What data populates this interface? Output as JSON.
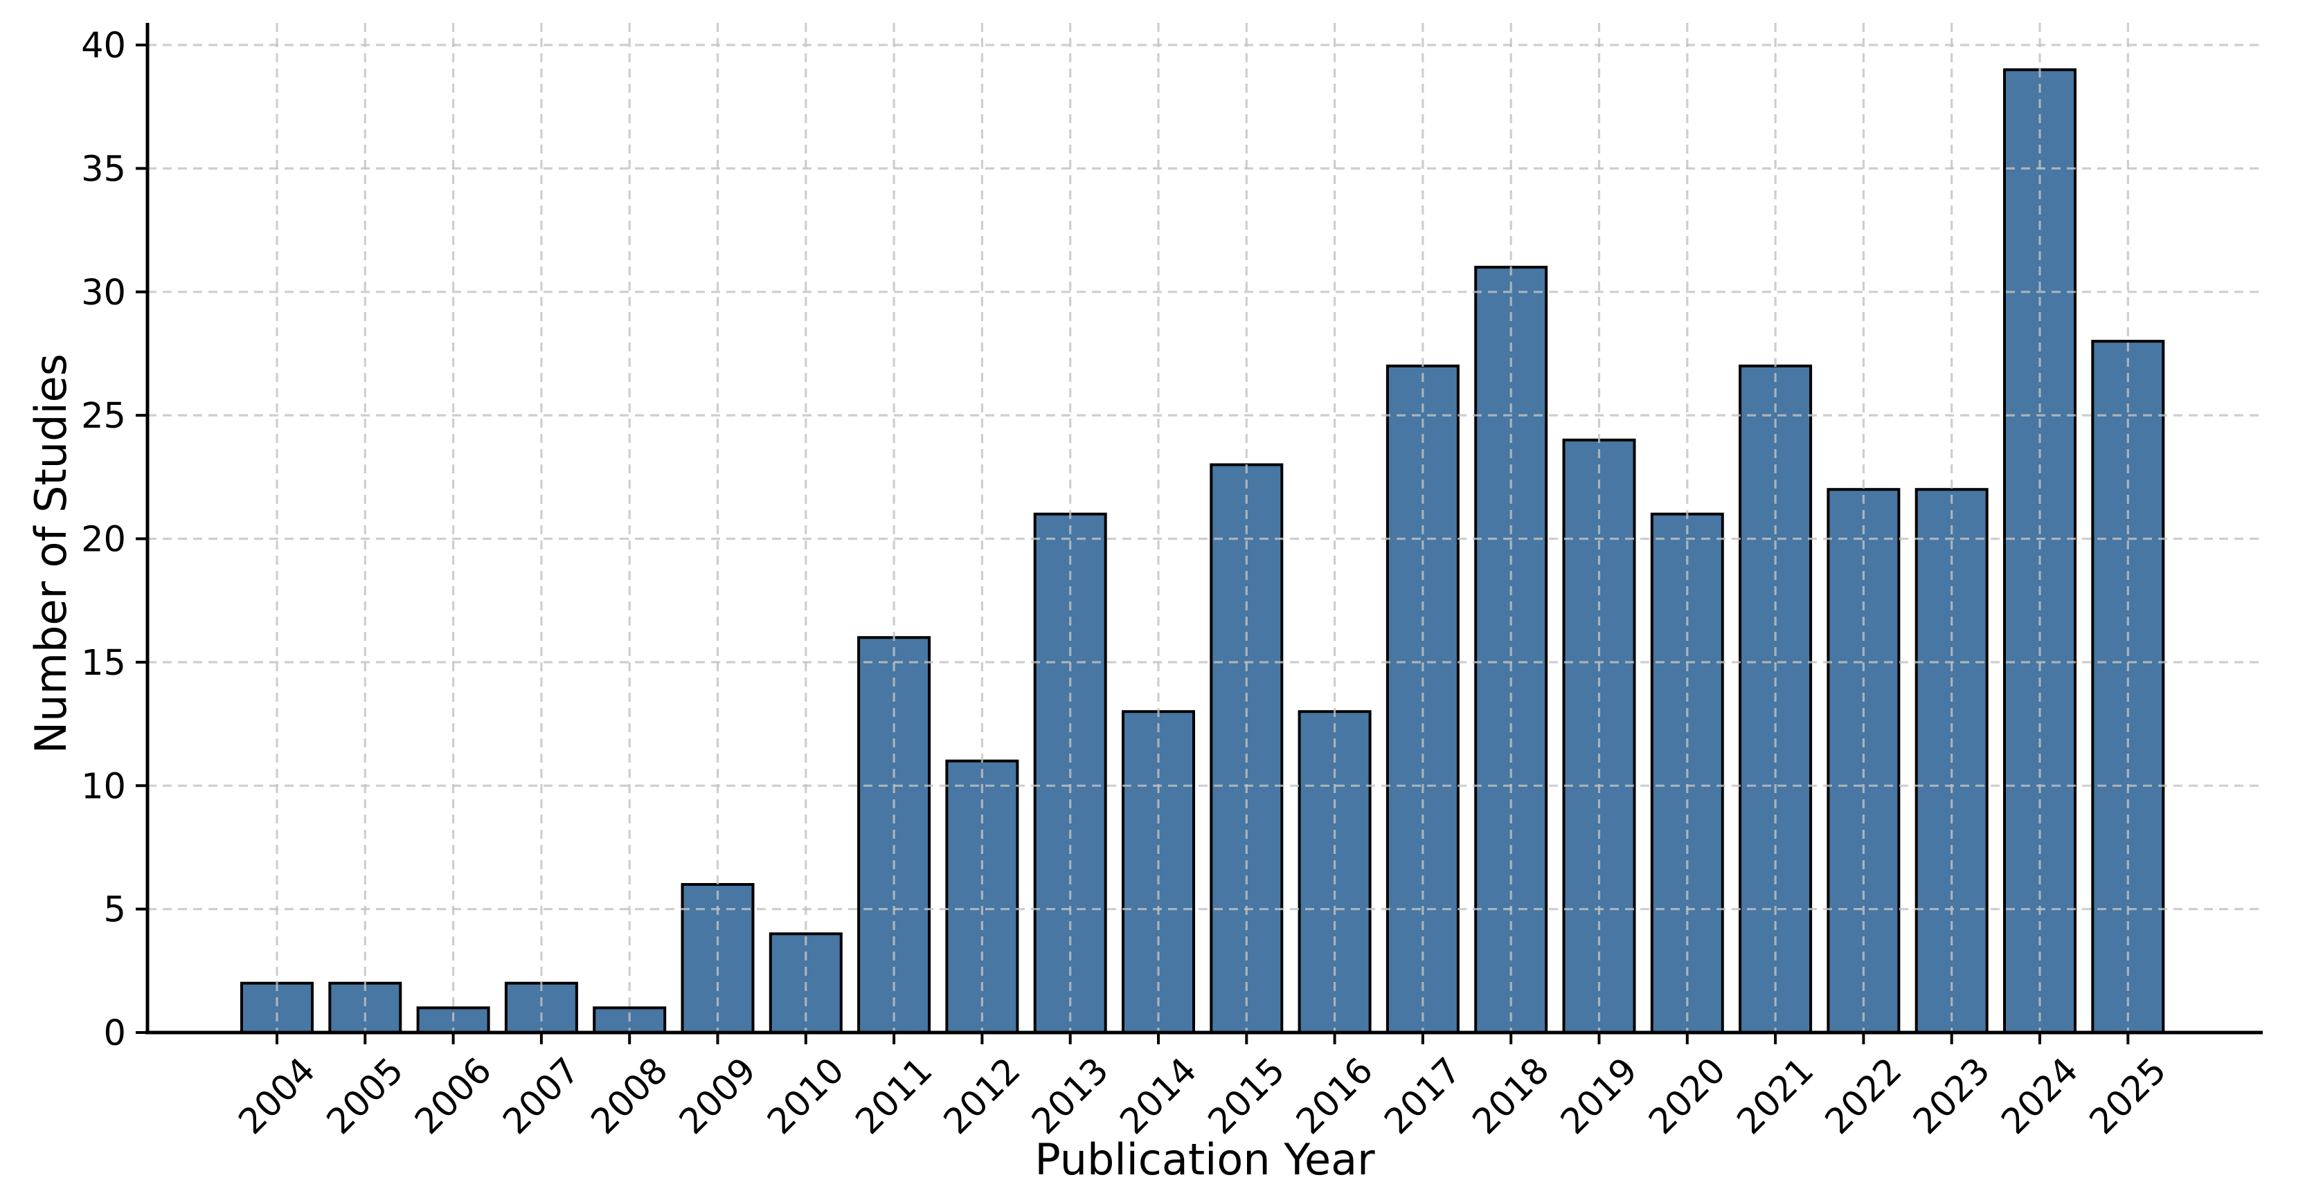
{
  "figure": {
    "background": "#ffffff"
  },
  "chart_data": {
    "type": "bar",
    "title": "",
    "xlabel": "Publication Year",
    "ylabel": "Number of Studies",
    "categories": [
      "2004",
      "2005",
      "2006",
      "2007",
      "2008",
      "2009",
      "2010",
      "2011",
      "2012",
      "2013",
      "2014",
      "2015",
      "2016",
      "2017",
      "2018",
      "2019",
      "2020",
      "2021",
      "2022",
      "2023",
      "2024",
      "2025"
    ],
    "values": [
      2,
      2,
      1,
      2,
      1,
      6,
      4,
      16,
      11,
      21,
      13,
      23,
      13,
      27,
      31,
      24,
      21,
      27,
      22,
      22,
      39,
      28
    ],
    "yticks": [
      0,
      5,
      10,
      15,
      20,
      25,
      30,
      35,
      40
    ],
    "ylim": [
      0,
      41
    ],
    "grid": true,
    "grid_style": "dashed",
    "legend_position": "none",
    "bar_color": "#4777a2",
    "bar_edge_color": "#000000",
    "grid_color": "#c3c3c3",
    "axis_color": "#000000",
    "tick_label_color": "#000000"
  }
}
